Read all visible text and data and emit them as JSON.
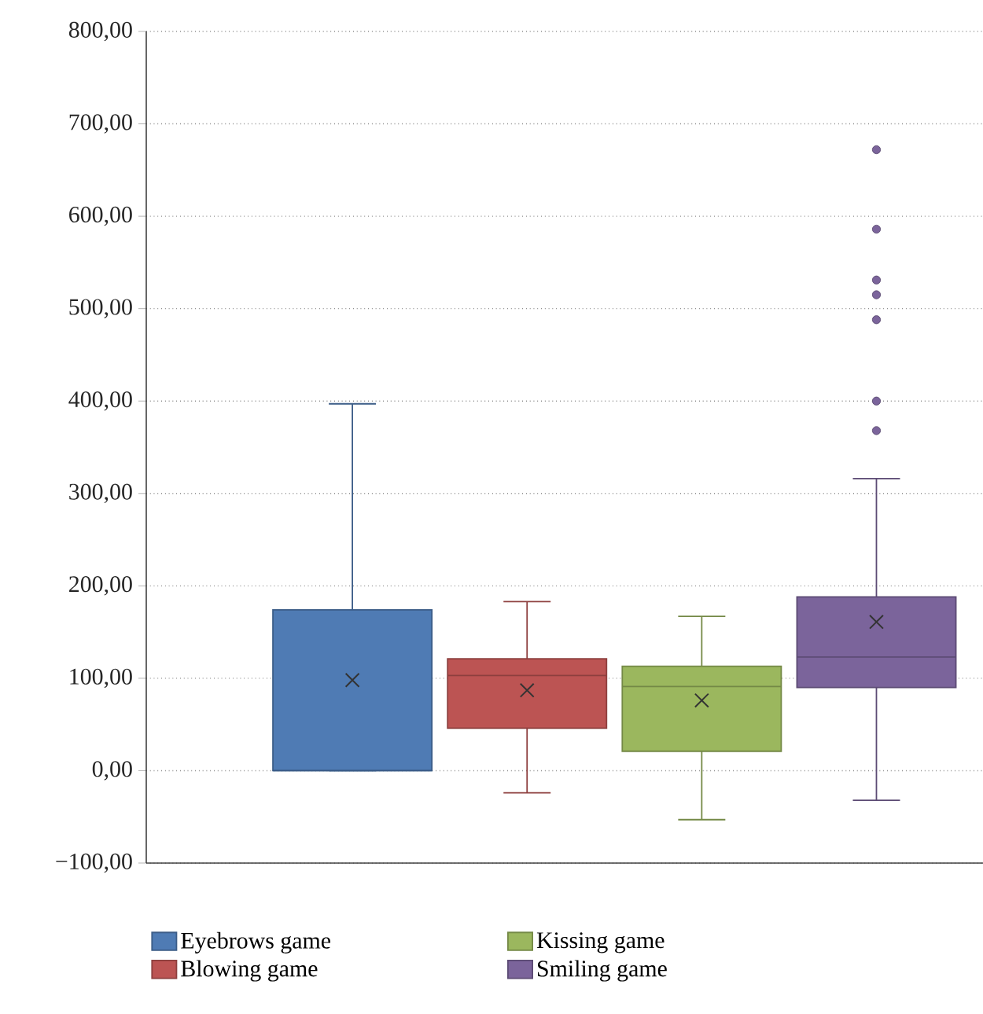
{
  "chart_data": {
    "type": "box",
    "categories": [
      null
    ],
    "series": [
      {
        "name": "Eyebrows game",
        "color": "#4f7bb4",
        "boxes": [
          {
            "low": 0,
            "q1": 0,
            "median": 0,
            "q3": 174,
            "high": 397,
            "mean": 98
          }
        ]
      },
      {
        "name": "Blowing game",
        "color": "#bc5453",
        "boxes": [
          {
            "low": -24,
            "q1": 46,
            "median": 103,
            "q3": 121,
            "high": 183,
            "mean": 87
          }
        ]
      },
      {
        "name": "Kissing game",
        "color": "#9bb75e",
        "boxes": [
          {
            "low": -53,
            "q1": 21,
            "median": 91,
            "q3": 113,
            "high": 167,
            "mean": 76
          }
        ]
      },
      {
        "name": "Smiling game",
        "color": "#7b649b",
        "boxes": [
          {
            "low": -32,
            "q1": 90,
            "median": 123,
            "q3": 188,
            "high": 316,
            "mean": 161,
            "outliers": [
              672,
              586,
              531,
              515,
              488,
              400,
              368
            ]
          }
        ]
      }
    ],
    "ylim": [
      -100,
      800
    ],
    "yticks": [
      {
        "value": -100,
        "label": "−100,00"
      },
      {
        "value": 0,
        "label": "0,00"
      },
      {
        "value": 100,
        "label": "100,00"
      },
      {
        "value": 200,
        "label": "200,00"
      },
      {
        "value": 300,
        "label": "300,00"
      },
      {
        "value": 400,
        "label": "400,00"
      },
      {
        "value": 500,
        "label": "500,00"
      },
      {
        "value": 600,
        "label": "600,00"
      },
      {
        "value": 700,
        "label": "700,00"
      },
      {
        "value": 800,
        "label": "800,00"
      }
    ],
    "grid": "y",
    "legend": "bottom",
    "tick_labels": "y"
  }
}
